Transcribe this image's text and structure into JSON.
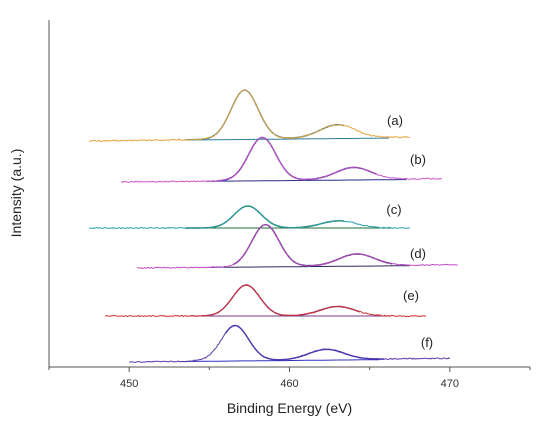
{
  "chart_data": {
    "type": "line",
    "xlabel": "Binding Energy (eV)",
    "ylabel": "Intensity (a.u.)",
    "xlim": [
      445,
      475
    ],
    "xticks": [
      450,
      460,
      470
    ],
    "x_minor_step": 5,
    "grid": false,
    "legend": "none",
    "stacked_offset": true,
    "series": [
      {
        "label": "(a)",
        "color": "#e8a33c",
        "fit_color": "#2f7f9a",
        "x_range": [
          447.5,
          467.5
        ],
        "baseline": 0.0,
        "slope": 0.004,
        "peaks": [
          {
            "center": 457.2,
            "height": 1.0,
            "width": 0.85
          },
          {
            "center": 463.0,
            "height": 0.27,
            "width": 1.1
          }
        ]
      },
      {
        "label": "(b)",
        "color": "#cc55cc",
        "fit_color": "#2a2a8a",
        "x_range": [
          449.5,
          469.5
        ],
        "baseline": 0.0,
        "slope": 0.004,
        "peaks": [
          {
            "center": 458.3,
            "height": 1.0,
            "width": 0.85
          },
          {
            "center": 464.0,
            "height": 0.28,
            "width": 1.1
          }
        ]
      },
      {
        "label": "(c)",
        "color": "#2aa0b0",
        "fit_color": "#1e6e3a",
        "x_range": [
          447.5,
          467.5
        ],
        "baseline": 0.0,
        "slope": 0.0,
        "peaks": [
          {
            "center": 457.4,
            "height": 0.55,
            "width": 0.85
          },
          {
            "center": 463.1,
            "height": 0.18,
            "width": 1.1
          }
        ]
      },
      {
        "label": "(d)",
        "color": "#c04cc8",
        "fit_color": "#2a2a5a",
        "x_range": [
          450.5,
          470.5
        ],
        "baseline": 0.0,
        "slope": 0.004,
        "peaks": [
          {
            "center": 458.5,
            "height": 1.0,
            "width": 0.85
          },
          {
            "center": 464.2,
            "height": 0.28,
            "width": 1.1
          }
        ]
      },
      {
        "label": "(e)",
        "color": "#d03030",
        "fit_color": "#7a3a8a",
        "x_range": [
          448.5,
          468.5
        ],
        "baseline": 0.0,
        "slope": 0.0,
        "peaks": [
          {
            "center": 457.3,
            "height": 0.72,
            "width": 0.85
          },
          {
            "center": 463.0,
            "height": 0.22,
            "width": 1.1
          }
        ]
      },
      {
        "label": "(f)",
        "color": "#5a3aa8",
        "fit_color": "#3030c0",
        "x_range": [
          450.0,
          470.0
        ],
        "baseline": 0.0,
        "slope": 0.004,
        "peaks": [
          {
            "center": 456.6,
            "height": 0.75,
            "width": 0.85
          },
          {
            "center": 462.3,
            "height": 0.22,
            "width": 1.1
          }
        ]
      }
    ]
  }
}
